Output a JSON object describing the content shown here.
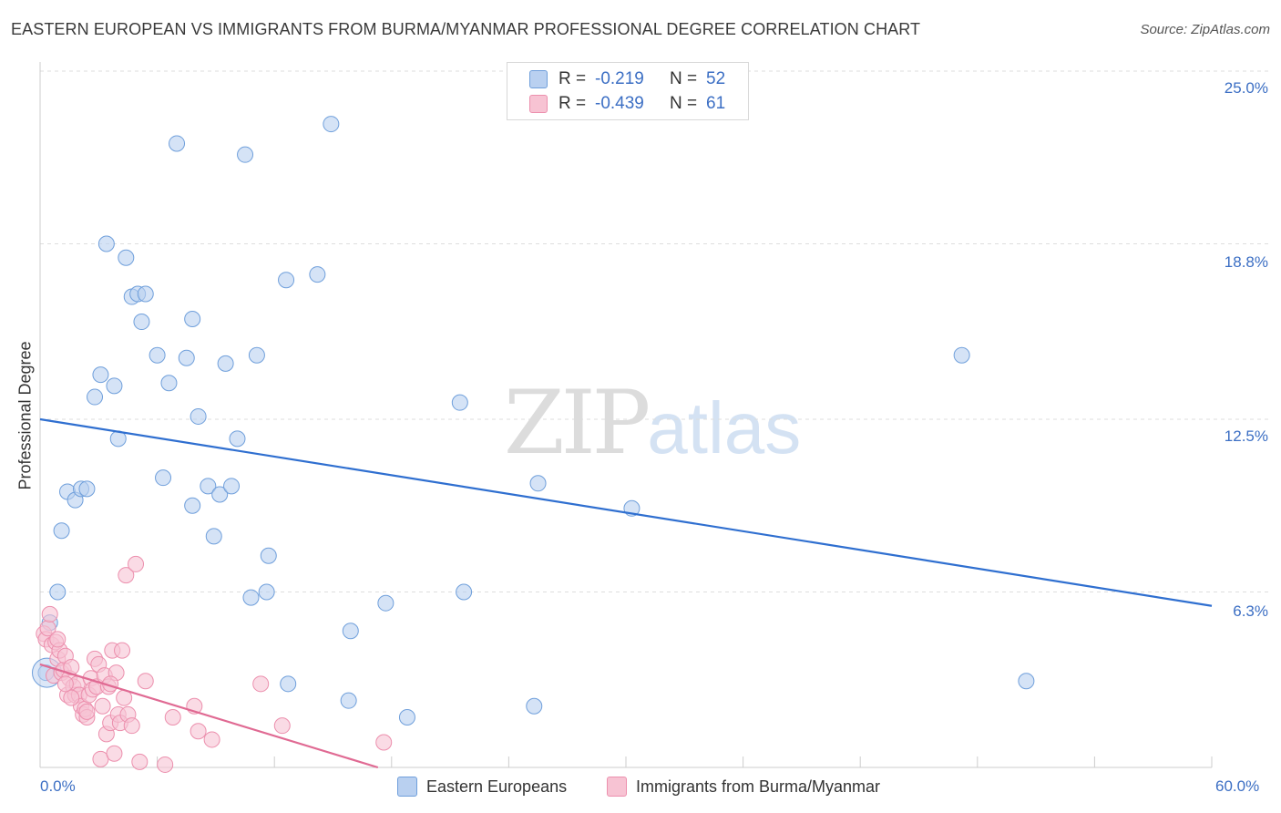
{
  "header": {
    "title": "EASTERN EUROPEAN VS IMMIGRANTS FROM BURMA/MYANMAR PROFESSIONAL DEGREE CORRELATION CHART",
    "source": "Source: ZipAtlas.com"
  },
  "watermark": {
    "zip": "ZIP",
    "atlas": "atlas"
  },
  "legend": {
    "r_label": "R =",
    "n_label": "N =",
    "rows": [
      {
        "name": "Eastern Europeans",
        "r": "-0.219",
        "n": "52"
      },
      {
        "name": "Immigrants from Burma/Myanmar",
        "r": "-0.439",
        "n": "61"
      }
    ]
  },
  "colors": {
    "blue_fill": "#b9d0f0",
    "blue_stroke": "#6f9fdb",
    "blue_line": "#2f6fd0",
    "pink_fill": "#f7c3d3",
    "pink_stroke": "#ec8fad",
    "pink_line": "#e06a93",
    "tick_text": "#3c6fc4"
  },
  "chart_data": {
    "type": "scatter",
    "title": "EASTERN EUROPEAN VS IMMIGRANTS FROM BURMA/MYANMAR PROFESSIONAL DEGREE CORRELATION CHART",
    "xlabel": "",
    "ylabel": "Professional Degree",
    "xlim": [
      0,
      60
    ],
    "ylim": [
      0,
      25
    ],
    "x_tick_labels": [
      "0.0%",
      "60.0%"
    ],
    "y_ticks": [
      6.3,
      12.5,
      18.8,
      25.0
    ],
    "y_tick_labels": [
      "6.3%",
      "12.5%",
      "18.8%",
      "25.0%"
    ],
    "grid": true,
    "series": [
      {
        "name": "Eastern Europeans",
        "color": "#b9d0f0",
        "trend": {
          "x": [
            0,
            60
          ],
          "y": [
            12.5,
            5.8
          ]
        },
        "points": [
          [
            0.5,
            5.2
          ],
          [
            0.3,
            3.4
          ],
          [
            0.9,
            6.3
          ],
          [
            1.1,
            8.5
          ],
          [
            1.4,
            9.9
          ],
          [
            1.8,
            9.6
          ],
          [
            2.1,
            10.0
          ],
          [
            2.4,
            10.0
          ],
          [
            2.8,
            13.3
          ],
          [
            3.1,
            14.1
          ],
          [
            3.4,
            18.8
          ],
          [
            3.8,
            13.7
          ],
          [
            4.0,
            11.8
          ],
          [
            4.4,
            18.3
          ],
          [
            4.7,
            16.9
          ],
          [
            5.0,
            17.0
          ],
          [
            5.2,
            16.0
          ],
          [
            5.4,
            17.0
          ],
          [
            6.0,
            14.8
          ],
          [
            6.3,
            10.4
          ],
          [
            6.6,
            13.8
          ],
          [
            7.0,
            22.4
          ],
          [
            7.5,
            14.7
          ],
          [
            7.8,
            16.1
          ],
          [
            7.8,
            9.4
          ],
          [
            8.1,
            12.6
          ],
          [
            8.6,
            10.1
          ],
          [
            8.9,
            8.3
          ],
          [
            9.2,
            9.8
          ],
          [
            9.5,
            14.5
          ],
          [
            9.8,
            10.1
          ],
          [
            10.1,
            11.8
          ],
          [
            10.5,
            22.0
          ],
          [
            10.8,
            6.1
          ],
          [
            11.1,
            14.8
          ],
          [
            11.6,
            6.3
          ],
          [
            11.7,
            7.6
          ],
          [
            12.6,
            17.5
          ],
          [
            12.7,
            3.0
          ],
          [
            14.2,
            17.7
          ],
          [
            14.9,
            23.1
          ],
          [
            15.8,
            2.4
          ],
          [
            15.9,
            4.9
          ],
          [
            17.7,
            5.9
          ],
          [
            18.8,
            1.8
          ],
          [
            21.5,
            13.1
          ],
          [
            21.7,
            6.3
          ],
          [
            25.3,
            2.2
          ],
          [
            25.5,
            10.2
          ],
          [
            30.3,
            9.3
          ],
          [
            47.2,
            14.8
          ],
          [
            50.5,
            3.1
          ]
        ]
      },
      {
        "name": "Immigrants from Burma/Myanmar",
        "color": "#f7c3d3",
        "trend": {
          "x": [
            0,
            17.3
          ],
          "y": [
            3.7,
            0.0
          ]
        },
        "points": [
          [
            0.2,
            4.8
          ],
          [
            0.3,
            4.6
          ],
          [
            0.4,
            5.0
          ],
          [
            0.5,
            5.5
          ],
          [
            0.6,
            4.4
          ],
          [
            0.7,
            3.3
          ],
          [
            0.8,
            4.5
          ],
          [
            0.9,
            3.9
          ],
          [
            1.0,
            4.2
          ],
          [
            1.1,
            3.4
          ],
          [
            1.2,
            3.5
          ],
          [
            1.3,
            4.0
          ],
          [
            1.4,
            2.6
          ],
          [
            1.5,
            3.2
          ],
          [
            1.6,
            3.6
          ],
          [
            1.7,
            2.9
          ],
          [
            1.8,
            2.6
          ],
          [
            1.9,
            3.0
          ],
          [
            2.0,
            2.6
          ],
          [
            2.1,
            2.2
          ],
          [
            2.2,
            1.9
          ],
          [
            2.3,
            2.1
          ],
          [
            2.4,
            1.8
          ],
          [
            2.5,
            2.6
          ],
          [
            2.6,
            3.2
          ],
          [
            2.7,
            2.8
          ],
          [
            2.8,
            3.9
          ],
          [
            2.9,
            2.9
          ],
          [
            3.0,
            3.7
          ],
          [
            3.1,
            0.3
          ],
          [
            3.2,
            2.2
          ],
          [
            3.3,
            3.3
          ],
          [
            3.4,
            1.2
          ],
          [
            3.5,
            2.9
          ],
          [
            3.6,
            1.6
          ],
          [
            3.7,
            4.2
          ],
          [
            3.8,
            0.5
          ],
          [
            3.9,
            3.4
          ],
          [
            4.0,
            1.9
          ],
          [
            4.1,
            1.6
          ],
          [
            4.2,
            4.2
          ],
          [
            4.3,
            2.5
          ],
          [
            4.4,
            6.9
          ],
          [
            4.5,
            1.9
          ],
          [
            4.7,
            1.5
          ],
          [
            4.9,
            7.3
          ],
          [
            5.1,
            0.2
          ],
          [
            5.4,
            3.1
          ],
          [
            6.4,
            0.1
          ],
          [
            6.8,
            1.8
          ],
          [
            7.9,
            2.2
          ],
          [
            8.1,
            1.3
          ],
          [
            8.8,
            1.0
          ],
          [
            11.3,
            3.0
          ],
          [
            12.4,
            1.5
          ],
          [
            17.6,
            0.9
          ],
          [
            1.6,
            2.5
          ],
          [
            0.9,
            4.6
          ],
          [
            1.3,
            3.0
          ],
          [
            2.4,
            2.0
          ],
          [
            3.6,
            3.0
          ]
        ]
      }
    ]
  }
}
